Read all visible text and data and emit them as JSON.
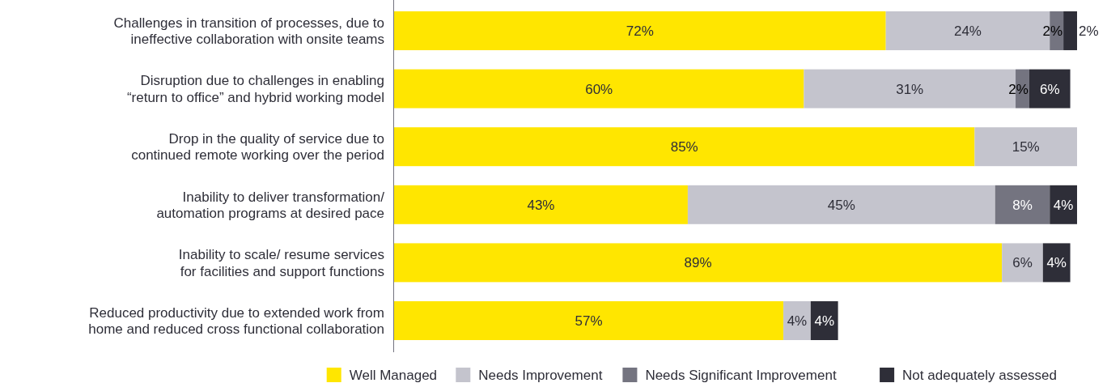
{
  "chart_data": {
    "type": "bar",
    "orientation": "horizontal",
    "stacked": true,
    "legend": "bottom",
    "categories": [
      "Challenges in transition of processes, due to\nineffective collaboration with onsite teams",
      "Disruption due to challenges in enabling\n“return to office” and hybrid working model",
      "Drop in the quality of service due to\ncontinued remote working over the period",
      "Inability to deliver transformation/\nautomation programs at desired pace",
      "Inability to scale/ resume services\nfor facilities and support functions",
      "Reduced productivity due to extended work from\nhome and reduced cross functional collaboration"
    ],
    "series": [
      {
        "name": "Well Managed",
        "color": "#ffe600",
        "values": [
          72,
          60,
          85,
          43,
          89,
          57
        ],
        "value_labels": [
          "72%",
          "60%",
          "85%",
          "43%",
          "89%",
          "57%"
        ]
      },
      {
        "name": "Needs Improvement",
        "color": "#c4c4cd",
        "values": [
          24,
          31,
          15,
          45,
          6,
          4
        ],
        "value_labels": [
          "24%",
          "31%",
          "15%",
          "45%",
          "6%",
          "4%"
        ]
      },
      {
        "name": "Needs Significant Improvement",
        "color": "#747480",
        "values": [
          2,
          2,
          null,
          8,
          null,
          null
        ],
        "value_labels": [
          "2%",
          "2%",
          null,
          "8%",
          null,
          null
        ]
      },
      {
        "name": "Not adequately assessed",
        "color": "#2e2e38",
        "values": [
          2,
          6,
          null,
          4,
          4,
          4
        ],
        "value_labels": [
          "2%",
          "6%",
          null,
          "4%",
          "4%",
          "4%"
        ]
      }
    ]
  }
}
